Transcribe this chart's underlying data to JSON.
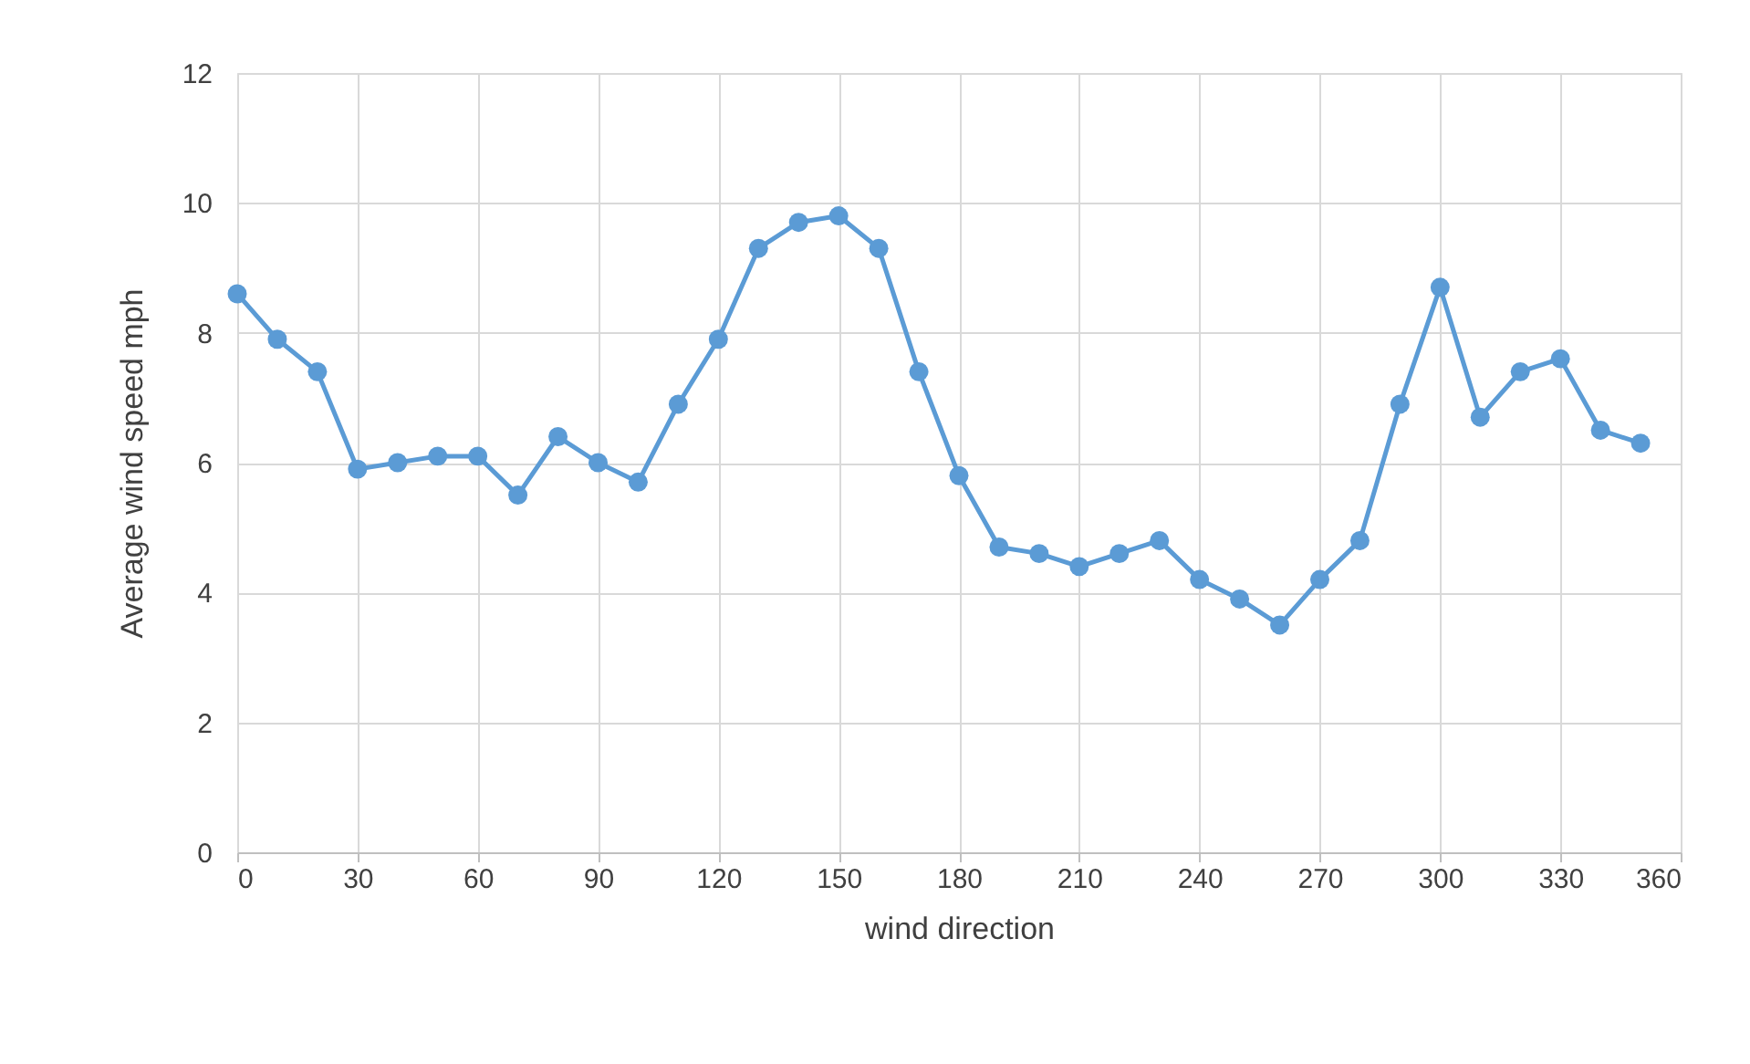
{
  "chart_data": {
    "type": "line",
    "xlabel": "wind direction",
    "ylabel": "Average wind speed mph",
    "x": [
      0,
      10,
      20,
      30,
      40,
      50,
      60,
      70,
      80,
      90,
      100,
      110,
      120,
      130,
      140,
      150,
      160,
      170,
      180,
      190,
      200,
      210,
      220,
      230,
      240,
      250,
      260,
      270,
      280,
      290,
      300,
      310,
      320,
      330,
      340,
      350
    ],
    "series": [
      {
        "color": "#5b9bd5",
        "values": [
          8.6,
          7.9,
          7.4,
          5.9,
          6.0,
          6.1,
          6.1,
          5.5,
          6.4,
          6.0,
          5.7,
          6.9,
          7.9,
          9.3,
          9.7,
          9.8,
          9.3,
          7.4,
          5.8,
          4.7,
          4.6,
          4.4,
          4.6,
          4.8,
          4.2,
          3.9,
          3.5,
          4.2,
          4.8,
          6.9,
          8.7,
          6.7,
          7.4,
          7.6,
          6.5,
          6.3
        ]
      }
    ],
    "xlim": [
      0,
      360
    ],
    "xticks": [
      0,
      30,
      60,
      90,
      120,
      150,
      180,
      210,
      240,
      270,
      300,
      330,
      360
    ],
    "ylim": [
      0,
      12
    ],
    "yticks": [
      0,
      2,
      4,
      6,
      8,
      10,
      12
    ],
    "grid": true,
    "marker": "circle",
    "line_style": "solid"
  }
}
